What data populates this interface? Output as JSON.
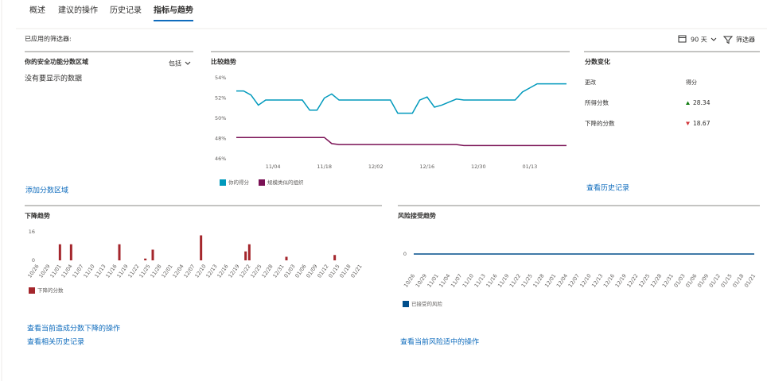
{
  "tabs": [
    "概述",
    "建议的操作",
    "历史记录",
    "指标与趋势"
  ],
  "active_tab": 3,
  "filters_label": "已应用的筛选器:",
  "time_range": "90 天",
  "filter_button": "筛选器",
  "score_zones": {
    "title": "你的安全功能分数区域",
    "dropdown": "包括",
    "empty_message": "没有要显示的数据",
    "link": "添加分数区域"
  },
  "score_change": {
    "title": "分数变化",
    "columns": [
      "更改",
      "得分"
    ],
    "rows": [
      {
        "label": "所得分数",
        "value": 28.34
      },
      {
        "label": "下降的分数",
        "value": 18.67
      }
    ],
    "link": "查看历史记录"
  },
  "decline_links": [
    "查看当前造成分数下降的操作",
    "查看相关历史记录"
  ],
  "risk_link": "查看当前风险适中的操作",
  "chart_data": [
    {
      "type": "line",
      "title": "比较趋势",
      "categories": [
        null,
        null,
        null,
        null,
        null,
        "11/04",
        null,
        null,
        null,
        null,
        null,
        null,
        "11/18",
        null,
        null,
        null,
        null,
        null,
        null,
        "12/02",
        null,
        null,
        null,
        null,
        null,
        null,
        "12/16",
        null,
        null,
        null,
        null,
        null,
        null,
        "12/30",
        null,
        null,
        null,
        null,
        null,
        null,
        "01/13",
        null,
        null,
        null,
        null,
        null
      ],
      "ylim": [
        46,
        54
      ],
      "yticks": [
        {
          "value": 46,
          "label": "46%"
        },
        {
          "value": 48,
          "label": "48%"
        },
        {
          "value": 50,
          "label": "50%"
        },
        {
          "value": 52,
          "label": "52%"
        },
        {
          "value": 54,
          "label": "54%"
        }
      ],
      "grid": false,
      "series": [
        {
          "name": "你的得分",
          "color": "#0099bc",
          "values": [
            52.7,
            52.7,
            52.3,
            51.3,
            51.8,
            51.8,
            51.8,
            51.8,
            51.8,
            51.8,
            50.8,
            50.8,
            52.0,
            52.4,
            51.8,
            51.8,
            51.8,
            51.8,
            51.8,
            51.8,
            51.8,
            51.8,
            50.5,
            50.5,
            50.5,
            51.8,
            52.1,
            51.1,
            51.3,
            51.6,
            51.9,
            51.8,
            51.8,
            51.8,
            51.8,
            51.8,
            51.8,
            51.8,
            51.8,
            52.6,
            53.0,
            53.4,
            53.4,
            53.4,
            53.4,
            53.4
          ]
        },
        {
          "name": "规模类似的组织",
          "color": "#7a1155",
          "values": [
            48.1,
            48.1,
            48.1,
            48.1,
            48.1,
            48.1,
            48.1,
            48.1,
            48.1,
            48.1,
            48.1,
            48.1,
            48.1,
            47.5,
            47.4,
            47.4,
            47.4,
            47.4,
            47.4,
            47.4,
            47.4,
            47.4,
            47.4,
            47.4,
            47.4,
            47.4,
            47.4,
            47.4,
            47.4,
            47.4,
            47.4,
            47.3,
            47.3,
            47.3,
            47.3,
            47.3,
            47.3,
            47.3,
            47.3,
            47.3,
            47.3,
            47.3,
            47.3,
            47.3,
            47.3,
            47.3
          ]
        }
      ]
    },
    {
      "type": "bar",
      "title": "下降趋势",
      "categories": [
        "10/26",
        null,
        null,
        "10/29",
        null,
        null,
        "11/01",
        null,
        null,
        "11/04",
        null,
        null,
        "11/07",
        null,
        null,
        "11/10",
        null,
        null,
        "11/13",
        null,
        null,
        "11/16",
        null,
        null,
        "11/19",
        null,
        null,
        "11/22",
        null,
        null,
        "11/25",
        null,
        null,
        "11/28",
        null,
        null,
        "12/01",
        null,
        null,
        "12/04",
        null,
        null,
        "12/07",
        null,
        null,
        "12/10",
        null,
        null,
        "12/13",
        null,
        null,
        "12/16",
        null,
        null,
        "12/19",
        null,
        null,
        "12/22",
        null,
        null,
        "12/25",
        null,
        null,
        "12/28",
        null,
        null,
        "12/31",
        null,
        null,
        "01/03",
        null,
        null,
        "01/06",
        null,
        null,
        "01/09",
        null,
        null,
        "01/12",
        null,
        null,
        "01/15",
        null,
        null,
        "01/18",
        null,
        null,
        "01/21",
        null,
        null
      ],
      "ylim": [
        0,
        16
      ],
      "yticks": [
        0,
        16
      ],
      "series": [
        {
          "name": "下降的分数",
          "color": "#a4262c",
          "values": [
            0,
            0,
            0,
            0,
            0,
            0,
            9,
            0,
            0,
            9,
            0,
            0,
            0,
            0,
            0,
            0,
            0,
            0,
            0,
            0,
            0,
            0,
            9,
            0,
            0,
            0,
            0,
            0,
            0,
            1,
            0,
            6,
            0,
            0,
            0,
            0,
            0,
            0,
            0,
            0,
            0,
            0,
            0,
            0,
            14,
            0,
            0,
            0,
            0,
            0,
            0,
            0,
            0,
            0,
            0,
            0,
            5,
            9,
            0,
            0,
            0,
            0,
            0,
            0,
            0,
            0,
            0,
            2,
            0,
            0,
            0,
            0,
            0,
            0,
            0,
            0,
            0,
            0,
            0,
            0,
            3,
            0,
            0,
            0,
            0,
            0,
            0,
            0,
            0,
            0
          ]
        }
      ]
    },
    {
      "type": "line",
      "title": "风险接受趋势",
      "categories": [
        "10/26",
        "10/29",
        "11/01",
        "11/04",
        "11/07",
        "11/10",
        "11/13",
        "11/16",
        "11/19",
        "11/22",
        "11/25",
        "11/28",
        "12/01",
        "12/04",
        "12/07",
        "12/10",
        "12/13",
        "12/16",
        "12/19",
        "12/22",
        "12/25",
        "12/28",
        "12/31",
        "01/03",
        "01/06",
        "01/09",
        "01/12",
        "01/15",
        "01/18",
        "01/21"
      ],
      "ylim": [
        -1,
        1
      ],
      "yticks": [
        0
      ],
      "series": [
        {
          "name": "已接受的风险",
          "color": "#004e8c",
          "values": [
            0,
            0,
            0,
            0,
            0,
            0,
            0,
            0,
            0,
            0,
            0,
            0,
            0,
            0,
            0,
            0,
            0,
            0,
            0,
            0,
            0,
            0,
            0,
            0,
            0,
            0,
            0,
            0,
            0,
            0
          ]
        }
      ]
    }
  ]
}
